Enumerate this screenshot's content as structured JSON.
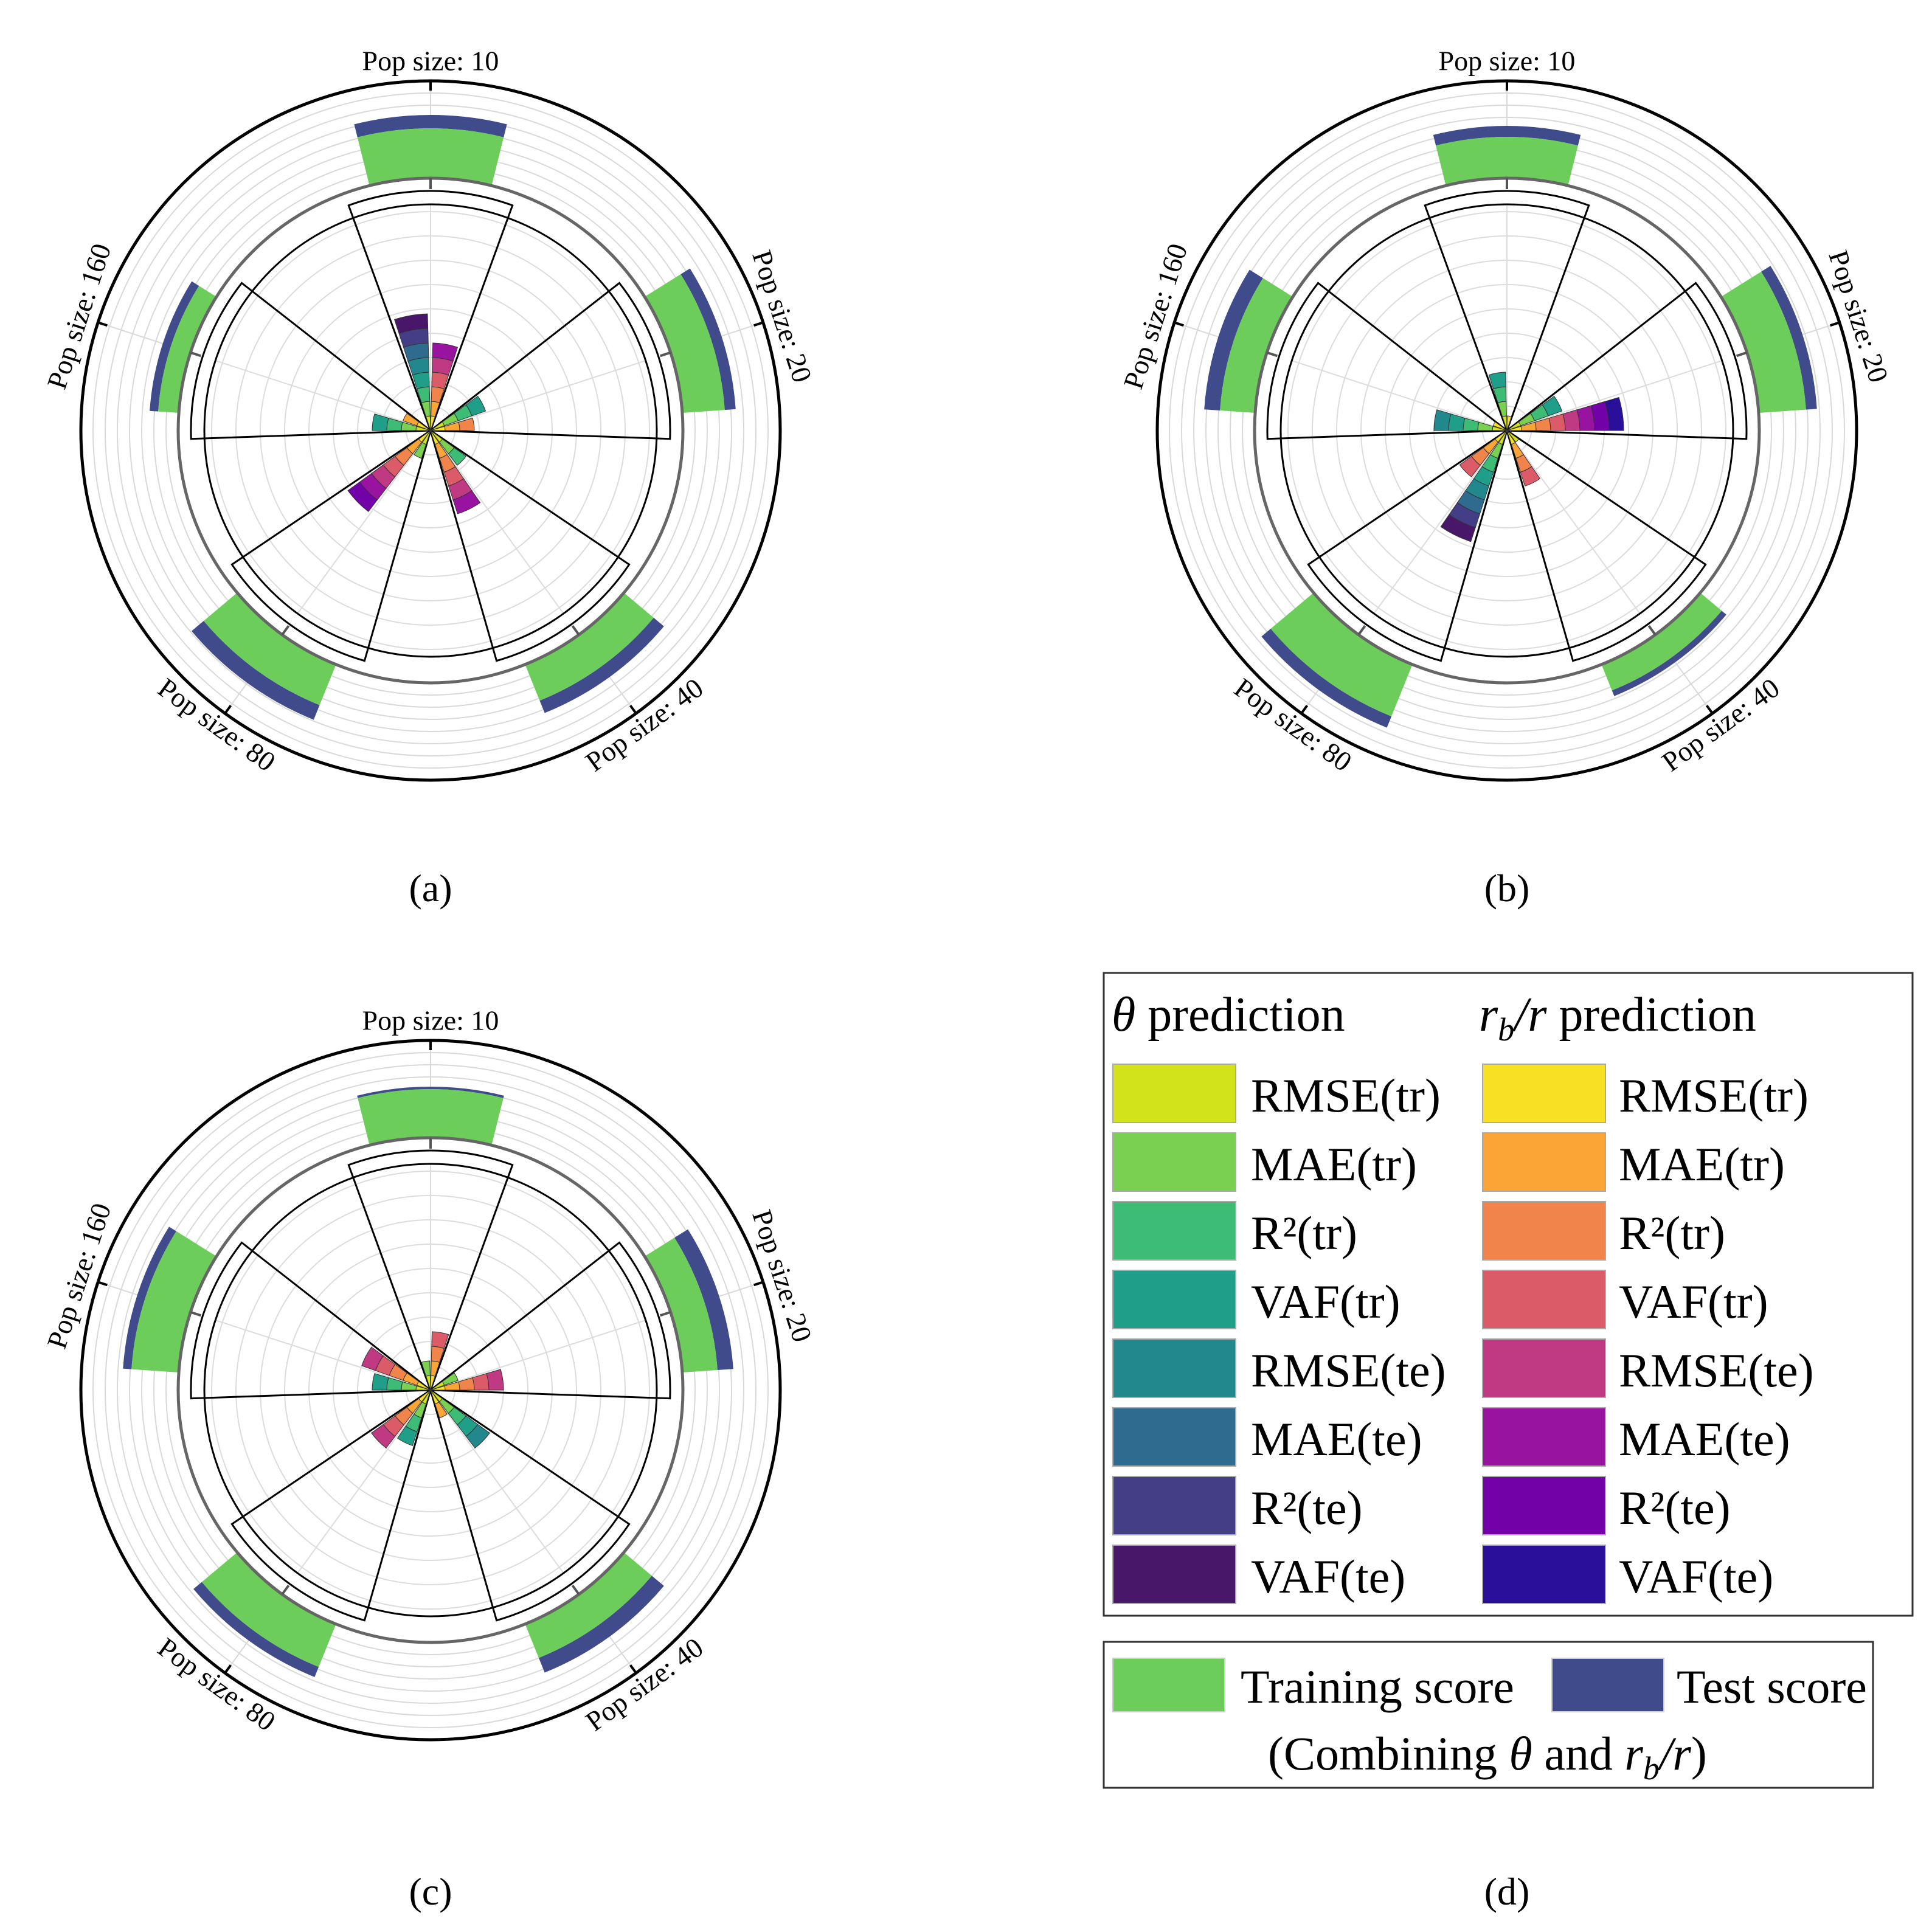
{
  "chart_data": {
    "type": "polar-bar",
    "metrics": [
      "RMSE(tr)",
      "MAE(tr)",
      "R²(tr)",
      "VAF(tr)",
      "RMSE(te)",
      "MAE(te)",
      "R²(te)",
      "VAF(te)"
    ],
    "categories": [
      "Pop size: 10",
      "Pop size: 20",
      "Pop size: 40",
      "Pop size: 80",
      "Pop size: 160"
    ],
    "colors": {
      "theta": [
        "#d2e21b",
        "#7ad151",
        "#3cbc75",
        "#1f9e89",
        "#23878e",
        "#2f6b8e",
        "#433e85",
        "#481769"
      ],
      "rbr": [
        "#f8e125",
        "#fca537",
        "#f1844b",
        "#db5c68",
        "#bf3a83",
        "#9814a0",
        "#7301a8",
        "#2a0f9a"
      ],
      "training": "#6ccd5a",
      "test": "#3f4b8b"
    },
    "score_range": [
      0,
      8
    ],
    "panels": [
      {
        "caption": "(a)",
        "theta_levels": [
          8,
          4,
          3,
          2,
          4
        ],
        "rbr_levels": [
          6,
          3,
          6,
          7,
          2
        ],
        "training_score": [
          4.1,
          3.5,
          3.2,
          3.6,
          1.7
        ],
        "test_score": [
          5.2,
          4.4,
          4.3,
          4.9,
          2.4
        ]
      },
      {
        "caption": "(b)",
        "theta_levels": [
          4,
          4,
          1,
          8,
          5
        ],
        "rbr_levels": [
          1,
          8,
          4,
          4,
          1
        ],
        "training_score": [
          3.4,
          3.9,
          2.3,
          4.6,
          2.9
        ],
        "test_score": [
          4.3,
          4.8,
          2.8,
          5.6,
          4.2
        ]
      },
      {
        "caption": "(c)",
        "theta_levels": [
          2,
          2,
          5,
          4,
          4
        ],
        "rbr_levels": [
          4,
          5,
          2,
          5,
          5
        ],
        "training_score": [
          4.0,
          2.9,
          3.0,
          3.8,
          3.9
        ],
        "test_score": [
          4.2,
          4.2,
          4.3,
          4.7,
          4.6
        ]
      }
    ]
  },
  "legend": {
    "theta_header_sym": "θ",
    "theta_header_rest": " prediction",
    "rbr_header_sym_r": "r",
    "rbr_header_sym_b": "b",
    "rbr_header_sym_r2": "/r",
    "rbr_header_rest": " prediction",
    "metric_labels": [
      "RMSE(tr)",
      "MAE(tr)",
      "R²(tr)",
      "VAF(tr)",
      "RMSE(te)",
      "MAE(te)",
      "R²(te)",
      "VAF(te)"
    ],
    "training_label": "Training score",
    "test_label": "Test score",
    "combining_open": "(Combining ",
    "combining_theta": "θ",
    "combining_and": " and ",
    "combining_r": "r",
    "combining_b": "b",
    "combining_r2": "/r",
    "combining_close": ")",
    "caption": "(d)"
  }
}
